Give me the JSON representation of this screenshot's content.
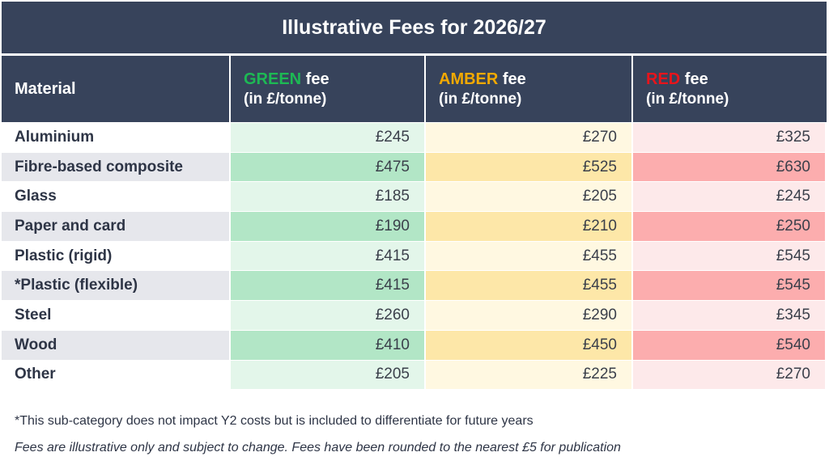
{
  "title": "Illustrative Fees for 2026/27",
  "headers": {
    "material": "Material",
    "green_word": "GREEN",
    "amber_word": "AMBER",
    "red_word": "RED",
    "fee_word": " fee",
    "unit": "(in £/tonne)"
  },
  "colors": {
    "green": "#1db954",
    "amber": "#f2a900",
    "red": "#e8141b",
    "header_bg": "#37435b"
  },
  "rows": [
    {
      "material": "Aluminium",
      "green": "£245",
      "amber": "£270",
      "red": "£325"
    },
    {
      "material": "Fibre-based composite",
      "green": "£475",
      "amber": "£525",
      "red": "£630"
    },
    {
      "material": "Glass",
      "green": "£185",
      "amber": "£205",
      "red": "£245"
    },
    {
      "material": "Paper and card",
      "green": "£190",
      "amber": "£210",
      "red": "£250"
    },
    {
      "material": "Plastic (rigid)",
      "green": "£415",
      "amber": "£455",
      "red": "£545"
    },
    {
      "material": "*Plastic (flexible)",
      "green": "£415",
      "amber": "£455",
      "red": "£545"
    },
    {
      "material": "Steel",
      "green": "£260",
      "amber": "£290",
      "red": "£345"
    },
    {
      "material": "Wood",
      "green": "£410",
      "amber": "£450",
      "red": "£540"
    },
    {
      "material": "Other",
      "green": "£205",
      "amber": "£225",
      "red": "£270"
    }
  ],
  "notes": {
    "footnote": "*This sub-category does not impact Y2 costs but is included to differentiate for future years",
    "disclaimer": "Fees are illustrative only and subject to change. Fees have been rounded to the nearest £5 for publication"
  }
}
